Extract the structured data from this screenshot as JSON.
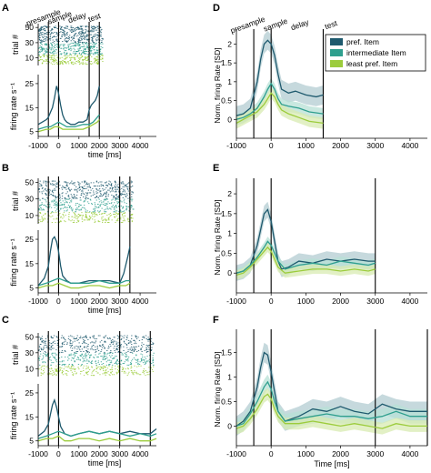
{
  "colors": {
    "pref": "#1f5a6e",
    "intermediate": "#2e9f8e",
    "least": "#9ccc3c",
    "pref_band": "#b3ccd2",
    "intermediate_band": "#b7e0d6",
    "least_band": "#d8ebb2"
  },
  "legend": {
    "items": [
      "pref. Item",
      "intermediate Item",
      "least pref. Item"
    ]
  },
  "chart_data": [
    {
      "panel": "A",
      "type": "line",
      "raster": {
        "ylabel": "trial #",
        "yticks": [
          10,
          30,
          50
        ],
        "ylim": [
          0,
          55
        ]
      },
      "ylabel": "firing rate s⁻¹",
      "yticks": [
        5,
        15,
        25
      ],
      "ylim": [
        3,
        28
      ],
      "xlim": [
        -1000,
        4800
      ],
      "xticks": [
        -1000,
        0,
        1000,
        2000,
        3000,
        4000
      ],
      "xlabel": "time [ms]",
      "event_lines": [
        -500,
        0,
        1500,
        2000
      ],
      "event_labels": [
        {
          "text": "presample",
          "at": -700
        },
        {
          "text": "sample",
          "at": 100
        },
        {
          "text": "delay",
          "at": 950
        },
        {
          "text": "test",
          "at": 1800
        }
      ],
      "series": [
        {
          "name": "pref. Item",
          "x": [
            -1000,
            -800,
            -600,
            -500,
            -400,
            -300,
            -200,
            -100,
            0,
            100,
            200,
            300,
            400,
            600,
            800,
            1000,
            1200,
            1400,
            1500,
            1600,
            1800,
            1900,
            2000
          ],
          "y": [
            8,
            9,
            10,
            11,
            13,
            15,
            19,
            24,
            21,
            16,
            12,
            10,
            9,
            8,
            8,
            9,
            9,
            10,
            14,
            16,
            18,
            20,
            24
          ]
        },
        {
          "name": "intermediate Item",
          "x": [
            -1000,
            -600,
            -400,
            -200,
            0,
            200,
            400,
            800,
            1200,
            1500,
            1700,
            1900,
            2000
          ],
          "y": [
            6,
            7,
            7,
            8,
            9,
            8,
            7,
            7,
            8,
            8,
            9,
            11,
            12
          ]
        },
        {
          "name": "least pref. Item",
          "x": [
            -1000,
            -600,
            -400,
            -200,
            0,
            200,
            400,
            800,
            1200,
            1500,
            1700,
            1900,
            2000
          ],
          "y": [
            5,
            6,
            6,
            7,
            7,
            6,
            6,
            6,
            6,
            7,
            8,
            9,
            10
          ]
        }
      ]
    },
    {
      "panel": "B",
      "type": "line",
      "raster": {
        "ylabel": "trial #",
        "yticks": [
          10,
          30,
          50
        ],
        "ylim": [
          0,
          55
        ]
      },
      "ylabel": "firing rate s⁻¹",
      "yticks": [
        5,
        15,
        25
      ],
      "ylim": [
        3,
        28
      ],
      "xlim": [
        -1000,
        4800
      ],
      "xticks": [
        -1000,
        0,
        1000,
        2000,
        3000,
        4000
      ],
      "xlabel": "time [ms]",
      "event_lines": [
        -500,
        0,
        3000,
        3500
      ],
      "event_labels": [],
      "series": [
        {
          "name": "pref. Item",
          "x": [
            -1000,
            -700,
            -500,
            -400,
            -300,
            -200,
            -100,
            0,
            100,
            200,
            400,
            600,
            1000,
            1500,
            2000,
            2500,
            3000,
            3200,
            3400,
            3500
          ],
          "y": [
            6,
            9,
            14,
            20,
            25,
            26,
            24,
            20,
            14,
            10,
            8,
            7,
            7,
            8,
            8,
            8,
            7,
            11,
            18,
            22
          ]
        },
        {
          "name": "intermediate Item",
          "x": [
            -1000,
            -600,
            -300,
            0,
            300,
            600,
            1000,
            1500,
            2000,
            2500,
            3000,
            3300,
            3500
          ],
          "y": [
            6,
            7,
            8,
            9,
            8,
            7,
            7,
            7,
            8,
            7,
            7,
            8,
            8
          ]
        },
        {
          "name": "least pref. Item",
          "x": [
            -1000,
            -600,
            -300,
            0,
            300,
            600,
            1000,
            1500,
            2000,
            2500,
            3000,
            3300,
            3500
          ],
          "y": [
            5,
            6,
            6,
            7,
            6,
            5,
            5,
            6,
            6,
            5,
            6,
            6,
            7
          ]
        }
      ]
    },
    {
      "panel": "C",
      "type": "line",
      "raster": {
        "ylabel": "trial #",
        "yticks": [
          10,
          30,
          50
        ],
        "ylim": [
          0,
          55
        ]
      },
      "ylabel": "firing rate s⁻¹",
      "yticks": [
        5,
        15,
        25
      ],
      "ylim": [
        3,
        28
      ],
      "xlim": [
        -1000,
        4800
      ],
      "xticks": [
        -1000,
        0,
        1000,
        2000,
        3000,
        4000
      ],
      "xlabel": "time [ms]",
      "event_lines": [
        -500,
        0,
        3000,
        4500
      ],
      "event_labels": [],
      "series": [
        {
          "name": "pref. Item",
          "x": [
            -1000,
            -700,
            -500,
            -400,
            -300,
            -200,
            -100,
            0,
            100,
            300,
            600,
            1000,
            1500,
            2000,
            2500,
            3000,
            3500,
            4000,
            4500,
            4800
          ],
          "y": [
            7,
            9,
            12,
            16,
            20,
            22,
            19,
            15,
            11,
            8,
            7,
            8,
            9,
            8,
            9,
            8,
            9,
            8,
            8,
            10
          ]
        },
        {
          "name": "intermediate Item",
          "x": [
            -1000,
            -600,
            -300,
            0,
            300,
            600,
            1000,
            1500,
            2000,
            2500,
            3000,
            3500,
            4000,
            4500,
            4800
          ],
          "y": [
            6,
            7,
            8,
            9,
            8,
            7,
            8,
            9,
            8,
            9,
            8,
            7,
            8,
            7,
            8
          ]
        },
        {
          "name": "least pref. Item",
          "x": [
            -1000,
            -600,
            -300,
            0,
            300,
            600,
            1000,
            1500,
            2000,
            2500,
            3000,
            3500,
            4000,
            4500,
            4800
          ],
          "y": [
            5,
            6,
            6,
            7,
            5,
            5,
            6,
            6,
            5,
            6,
            5,
            6,
            5,
            5,
            6
          ]
        }
      ]
    },
    {
      "panel": "D",
      "type": "area",
      "ylabel": "Norm. firing Rate [SD]",
      "yticks": [
        0,
        0.5,
        1,
        1.5,
        2
      ],
      "ylim": [
        -0.5,
        2.3
      ],
      "xlim": [
        -1000,
        4500
      ],
      "xticks": [
        -1000,
        0,
        1000,
        2000,
        3000,
        4000
      ],
      "event_lines": [
        -500,
        0,
        1500
      ],
      "event_labels": [
        {
          "text": "presample",
          "at": -650
        },
        {
          "text": "sample",
          "at": 150
        },
        {
          "text": "delay",
          "at": 850
        },
        {
          "text": "test",
          "at": 1750
        }
      ],
      "series": [
        {
          "name": "pref. Item",
          "x": [
            -1000,
            -800,
            -600,
            -400,
            -300,
            -200,
            -100,
            0,
            100,
            200,
            300,
            500,
            700,
            1000,
            1300,
            1500
          ],
          "y": [
            0.1,
            0.15,
            0.3,
            1.0,
            1.6,
            2.0,
            2.1,
            2.0,
            1.7,
            1.2,
            0.8,
            0.7,
            0.75,
            0.65,
            0.6,
            0.65
          ],
          "band": 0.25
        },
        {
          "name": "intermediate Item",
          "x": [
            -1000,
            -800,
            -600,
            -400,
            -200,
            -100,
            0,
            100,
            200,
            300,
            500,
            800,
            1100,
            1500
          ],
          "y": [
            0.0,
            0.05,
            0.15,
            0.3,
            0.6,
            0.8,
            0.95,
            0.8,
            0.55,
            0.4,
            0.35,
            0.3,
            0.2,
            0.15
          ],
          "band": 0.15
        },
        {
          "name": "least pref. Item",
          "x": [
            -1000,
            -800,
            -600,
            -400,
            -200,
            -100,
            0,
            100,
            200,
            300,
            500,
            800,
            1100,
            1500
          ],
          "y": [
            -0.1,
            0.0,
            0.1,
            0.2,
            0.4,
            0.55,
            0.7,
            0.6,
            0.4,
            0.25,
            0.15,
            0.05,
            -0.05,
            -0.1
          ],
          "band": 0.15
        }
      ]
    },
    {
      "panel": "E",
      "type": "area",
      "ylabel": "Norm. firing Rate [SD]",
      "yticks": [
        0,
        0.5,
        1,
        1.5,
        2
      ],
      "ylim": [
        -0.5,
        2.3
      ],
      "xlim": [
        -1000,
        4500
      ],
      "xticks": [
        -1000,
        0,
        1000,
        2000,
        3000,
        4000
      ],
      "event_lines": [
        -500,
        0,
        3000
      ],
      "event_labels": [],
      "series": [
        {
          "name": "pref. Item",
          "x": [
            -1000,
            -800,
            -600,
            -400,
            -300,
            -200,
            -100,
            0,
            100,
            200,
            300,
            500,
            800,
            1200,
            1600,
            2000,
            2400,
            2800,
            3000
          ],
          "y": [
            0.0,
            0.05,
            0.2,
            0.7,
            1.1,
            1.5,
            1.6,
            1.3,
            0.8,
            0.3,
            0.1,
            0.15,
            0.3,
            0.25,
            0.35,
            0.3,
            0.35,
            0.3,
            0.3
          ],
          "band": 0.2
        },
        {
          "name": "intermediate Item",
          "x": [
            -1000,
            -800,
            -600,
            -400,
            -200,
            -100,
            0,
            100,
            200,
            400,
            800,
            1200,
            1600,
            2000,
            2400,
            2800,
            3000
          ],
          "y": [
            0.0,
            0.05,
            0.2,
            0.4,
            0.65,
            0.8,
            0.7,
            0.5,
            0.3,
            0.1,
            0.2,
            0.25,
            0.2,
            0.3,
            0.25,
            0.2,
            0.25
          ],
          "band": 0.12
        },
        {
          "name": "least pref. Item",
          "x": [
            -1000,
            -800,
            -600,
            -400,
            -200,
            -100,
            0,
            100,
            200,
            400,
            800,
            1200,
            1600,
            2000,
            2400,
            2800,
            3000
          ],
          "y": [
            -0.05,
            0.0,
            0.15,
            0.35,
            0.55,
            0.65,
            0.55,
            0.35,
            0.15,
            0.0,
            0.05,
            0.1,
            0.1,
            0.05,
            0.1,
            0.05,
            0.1
          ],
          "band": 0.12
        }
      ]
    },
    {
      "panel": "F",
      "type": "area",
      "ylabel": "Norm. firing Rate [SD]",
      "yticks": [
        0,
        0.5,
        1,
        1.5
      ],
      "ylim": [
        -0.4,
        1.9
      ],
      "xlim": [
        -1000,
        4500
      ],
      "xticks": [
        -1000,
        0,
        1000,
        2000,
        3000,
        4000
      ],
      "xlabel": "Time [ms]",
      "event_lines": [
        -500,
        0,
        3000,
        4500
      ],
      "event_labels": [],
      "series": [
        {
          "name": "pref. Item",
          "x": [
            -1000,
            -800,
            -600,
            -400,
            -300,
            -200,
            -100,
            0,
            100,
            200,
            400,
            800,
            1200,
            1600,
            2000,
            2400,
            2800,
            3200,
            3600,
            4000,
            4500
          ],
          "y": [
            0.0,
            0.1,
            0.3,
            0.8,
            1.2,
            1.5,
            1.45,
            1.1,
            0.7,
            0.3,
            0.1,
            0.2,
            0.35,
            0.3,
            0.4,
            0.3,
            0.25,
            0.45,
            0.35,
            0.3,
            0.3
          ],
          "band": 0.2
        },
        {
          "name": "intermediate Item",
          "x": [
            -1000,
            -800,
            -600,
            -400,
            -200,
            -100,
            0,
            100,
            200,
            400,
            800,
            1200,
            1600,
            2000,
            2400,
            2800,
            3200,
            3600,
            4000,
            4500
          ],
          "y": [
            0.0,
            0.05,
            0.25,
            0.5,
            0.8,
            0.9,
            0.75,
            0.5,
            0.3,
            0.1,
            0.15,
            0.2,
            0.25,
            0.2,
            0.2,
            0.15,
            0.2,
            0.3,
            0.2,
            0.2
          ],
          "band": 0.15
        },
        {
          "name": "least pref. Item",
          "x": [
            -1000,
            -800,
            -600,
            -400,
            -200,
            -100,
            0,
            100,
            200,
            400,
            800,
            1200,
            1600,
            2000,
            2400,
            2800,
            3200,
            3600,
            4000,
            4500
          ],
          "y": [
            -0.05,
            0.0,
            0.15,
            0.35,
            0.6,
            0.65,
            0.55,
            0.35,
            0.2,
            0.05,
            0.05,
            0.1,
            0.05,
            0.0,
            0.05,
            0.0,
            -0.05,
            0.05,
            0.0,
            0.0
          ],
          "band": 0.12
        }
      ]
    }
  ]
}
